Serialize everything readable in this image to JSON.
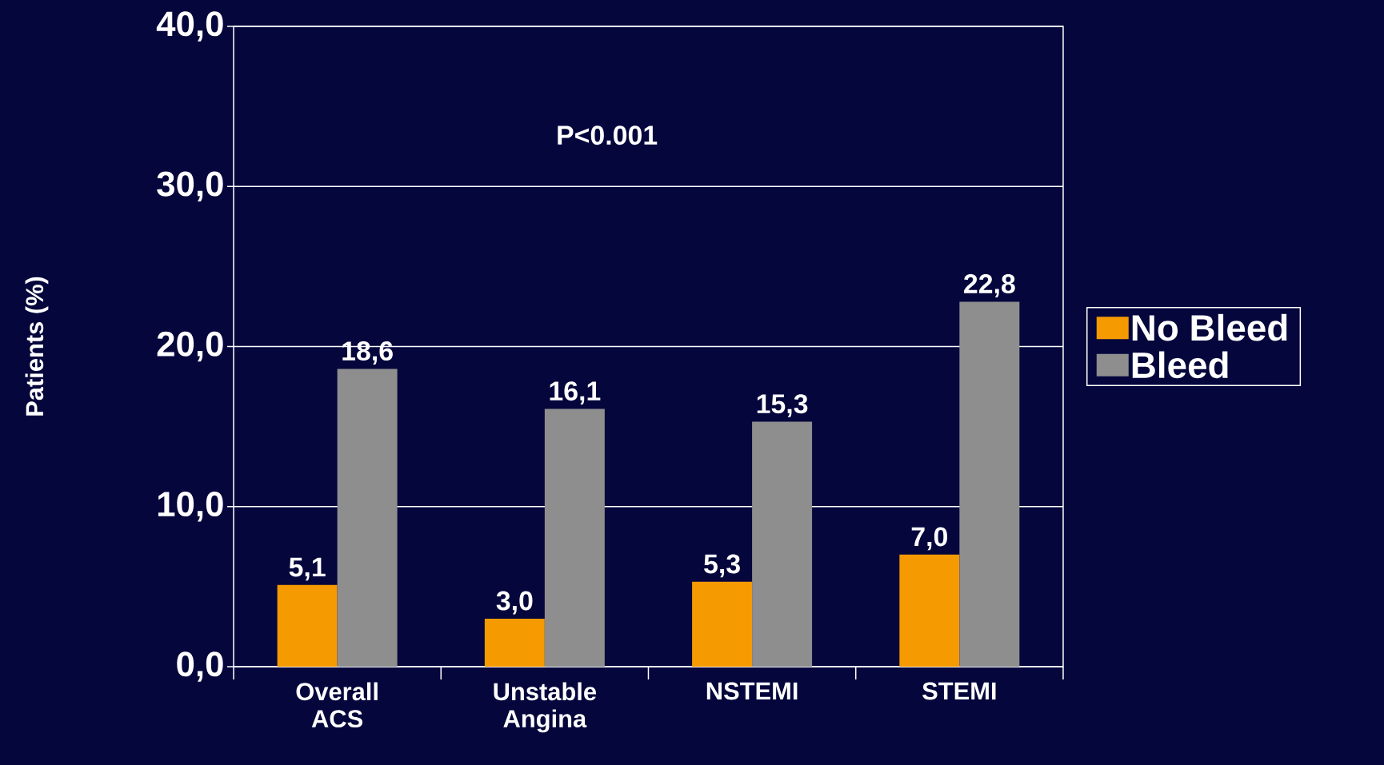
{
  "chart_data": {
    "type": "bar",
    "ylabel": "Patients (%)",
    "categories": [
      "Overall ACS",
      "Unstable Angina",
      "NSTEMI",
      "STEMI"
    ],
    "series": [
      {
        "name": "No Bleed",
        "color": "#f59a00",
        "values": [
          5.1,
          3.0,
          5.3,
          7.0
        ],
        "value_labels": [
          "5,1",
          "3,0",
          "5,3",
          "7,0"
        ]
      },
      {
        "name": "Bleed",
        "color": "#8e8e8e",
        "values": [
          18.6,
          16.1,
          15.3,
          22.8
        ],
        "value_labels": [
          "18,6",
          "16,1",
          "15,3",
          "22,8"
        ]
      }
    ],
    "ylim": [
      0,
      40
    ],
    "yticks": [
      {
        "value": 0,
        "label": "0,0"
      },
      {
        "value": 10,
        "label": "10,0"
      },
      {
        "value": 20,
        "label": "20,0"
      },
      {
        "value": 30,
        "label": "30,0"
      },
      {
        "value": 40,
        "label": "40,0"
      }
    ],
    "grid": "y",
    "legend": "right",
    "annotations": [
      "P<0.001"
    ]
  }
}
